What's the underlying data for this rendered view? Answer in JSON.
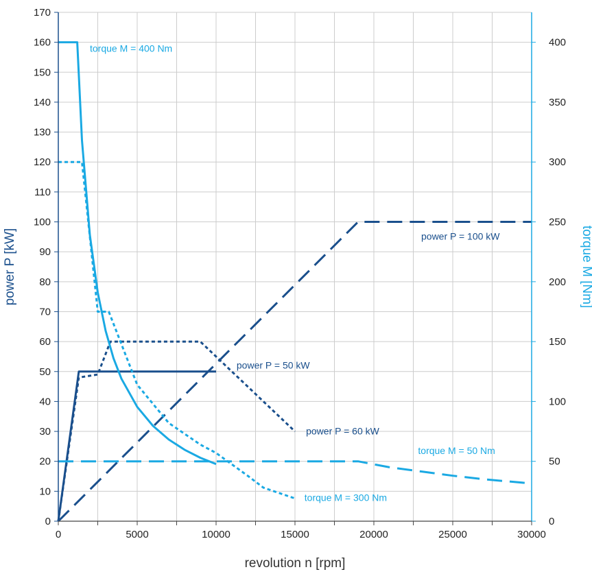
{
  "chart_data": {
    "type": "line",
    "xlabel": "revolution n [rpm]",
    "ylabel_left": "power P [kW]",
    "ylabel_right": "torque M [Nm]",
    "xlim": [
      0,
      30000
    ],
    "ylim_left": [
      0,
      170
    ],
    "ylim_right": [
      0,
      425
    ],
    "x_ticks": [
      0,
      5000,
      10000,
      15000,
      20000,
      25000,
      30000
    ],
    "x_tick_labels": [
      "0",
      "5000",
      "10000",
      "15000",
      "20000",
      "25000",
      "30000"
    ],
    "y_left_ticks": [
      0,
      10,
      20,
      30,
      40,
      50,
      60,
      70,
      80,
      90,
      100,
      110,
      120,
      130,
      140,
      150,
      160,
      170
    ],
    "y_left_tick_labels": [
      "0",
      "10",
      "20",
      "30",
      "40",
      "50",
      "60",
      "70",
      "80",
      "90",
      "100",
      "110",
      "120",
      "130",
      "140",
      "150",
      "160",
      "170"
    ],
    "y_right_ticks": [
      0,
      50,
      100,
      150,
      200,
      250,
      300,
      350,
      400
    ],
    "y_right_tick_labels": [
      "0",
      "50",
      "100",
      "150",
      "200",
      "250",
      "300",
      "350",
      "400"
    ],
    "grid": true,
    "colors": {
      "power": "#1a4f8c",
      "torque": "#1aa9e3",
      "grid": "#cccccc",
      "left_axis": "#1a4f8c",
      "right_axis": "#1aa9e3"
    },
    "series": [
      {
        "axis": "left",
        "color": "#1a4f8c",
        "dash": "solid",
        "x": [
          0,
          1300,
          10000
        ],
        "y": [
          0,
          50,
          50
        ]
      },
      {
        "axis": "left",
        "color": "#1a4f8c",
        "dash": "short",
        "x": [
          0,
          1300,
          2500,
          3300,
          9000,
          15000
        ],
        "y": [
          0,
          48,
          49,
          60,
          60,
          30
        ]
      },
      {
        "axis": "left",
        "color": "#1a4f8c",
        "dash": "long",
        "x": [
          0,
          19000,
          30000
        ],
        "y": [
          0,
          100,
          100
        ]
      },
      {
        "axis": "right",
        "color": "#1aa9e3",
        "dash": "solid",
        "x": [
          0,
          1200,
          1500,
          2000,
          2500,
          3000,
          3500,
          4000,
          5000,
          6000,
          7000,
          8000,
          9000,
          10000
        ],
        "y": [
          400,
          400,
          318,
          239,
          191,
          159,
          136,
          119,
          95.5,
          79.6,
          68.2,
          59.7,
          53,
          47.7
        ]
      },
      {
        "axis": "right",
        "color": "#1aa9e3",
        "dash": "short",
        "x": [
          0,
          1500,
          2500,
          2500,
          3200,
          5000,
          7000,
          9000,
          10000,
          12000,
          13000,
          15000
        ],
        "y": [
          300,
          300,
          175,
          175,
          175,
          114,
          82,
          64,
          57,
          38,
          28,
          19
        ]
      },
      {
        "axis": "right",
        "color": "#1aa9e3",
        "dash": "long",
        "x": [
          0,
          19000,
          21000,
          23000,
          25000,
          27000,
          30000
        ],
        "y": [
          50,
          50,
          45,
          41.5,
          38,
          35,
          31.5
        ]
      }
    ],
    "annotations": [
      {
        "text": "torque M = 400 Nm",
        "color": "#1aa9e3",
        "x": 2000,
        "axis": "right",
        "y": 392
      },
      {
        "text": "power P = 100 kW",
        "color": "#1a4f8c",
        "x": 23000,
        "axis": "left",
        "y": 94
      },
      {
        "text": "power P = 50 kW",
        "color": "#1a4f8c",
        "x": 11300,
        "axis": "left",
        "y": 51
      },
      {
        "text": "power P = 60 kW",
        "color": "#1a4f8c",
        "x": 15700,
        "axis": "left",
        "y": 29
      },
      {
        "text": "torque M = 50 Nm",
        "color": "#1aa9e3",
        "x": 22800,
        "axis": "right",
        "y": 56
      },
      {
        "text": "torque M = 300 Nm",
        "color": "#1aa9e3",
        "x": 15600,
        "axis": "right",
        "y": 17
      }
    ]
  }
}
